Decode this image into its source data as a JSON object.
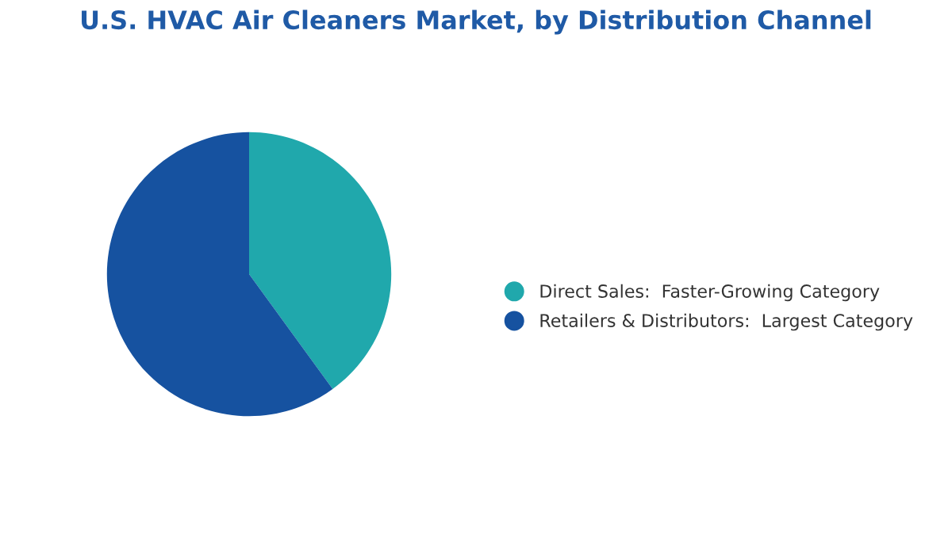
{
  "chart_data": {
    "type": "pie",
    "title": "U.S. HVAC Air Cleaners Market, by Distribution Channel",
    "categories": [
      "Direct Sales:  Faster-Growing Category",
      "Retailers & Distributors:  Largest Category"
    ],
    "values": [
      40,
      60
    ],
    "colors": [
      "#20a8ac",
      "#1652a0"
    ],
    "legend": "right"
  }
}
